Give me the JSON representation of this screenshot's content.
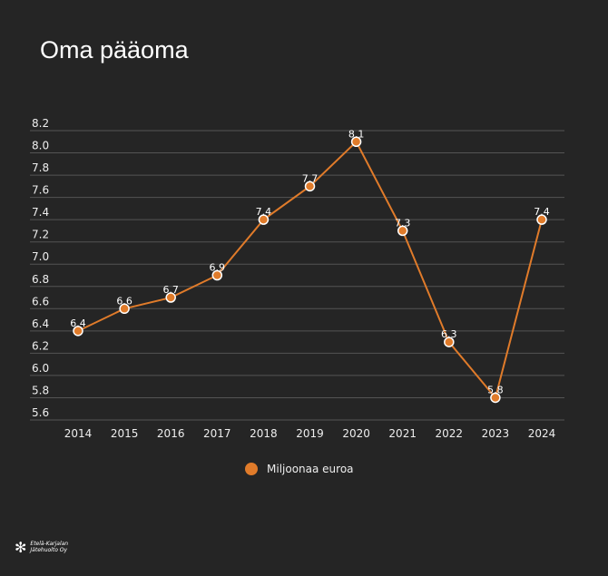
{
  "title": "Oma pääoma",
  "logo_text": "Etelä-Karjalan Jätehuolto Oy",
  "colors": {
    "series": "#e07b2a",
    "grid": "#555555",
    "background": "#252525"
  },
  "chart_data": {
    "type": "line",
    "title": "Oma pääoma",
    "xlabel": "",
    "ylabel": "",
    "categories": [
      "2014",
      "2015",
      "2016",
      "2017",
      "2018",
      "2019",
      "2020",
      "2021",
      "2022",
      "2023",
      "2024"
    ],
    "series": [
      {
        "name": "Miljoonaa euroa",
        "values": [
          6.4,
          6.6,
          6.7,
          6.9,
          7.4,
          7.7,
          8.1,
          7.3,
          6.3,
          5.8,
          7.4
        ]
      }
    ],
    "labels": [
      "6.4",
      "6.6",
      "6.7",
      "6.9",
      "7.4",
      "7.7",
      "8.1",
      "7.3",
      "6.3",
      "5.8",
      "7.4"
    ],
    "yticks": [
      "5.6",
      "5.8",
      "6.0",
      "6.2",
      "6.4",
      "6.6",
      "6.8",
      "7.0",
      "7.2",
      "7.4",
      "7.6",
      "7.8",
      "8.0",
      "8.2"
    ],
    "ylim": [
      5.6,
      8.2
    ],
    "grid": true,
    "legend": "bottom"
  }
}
